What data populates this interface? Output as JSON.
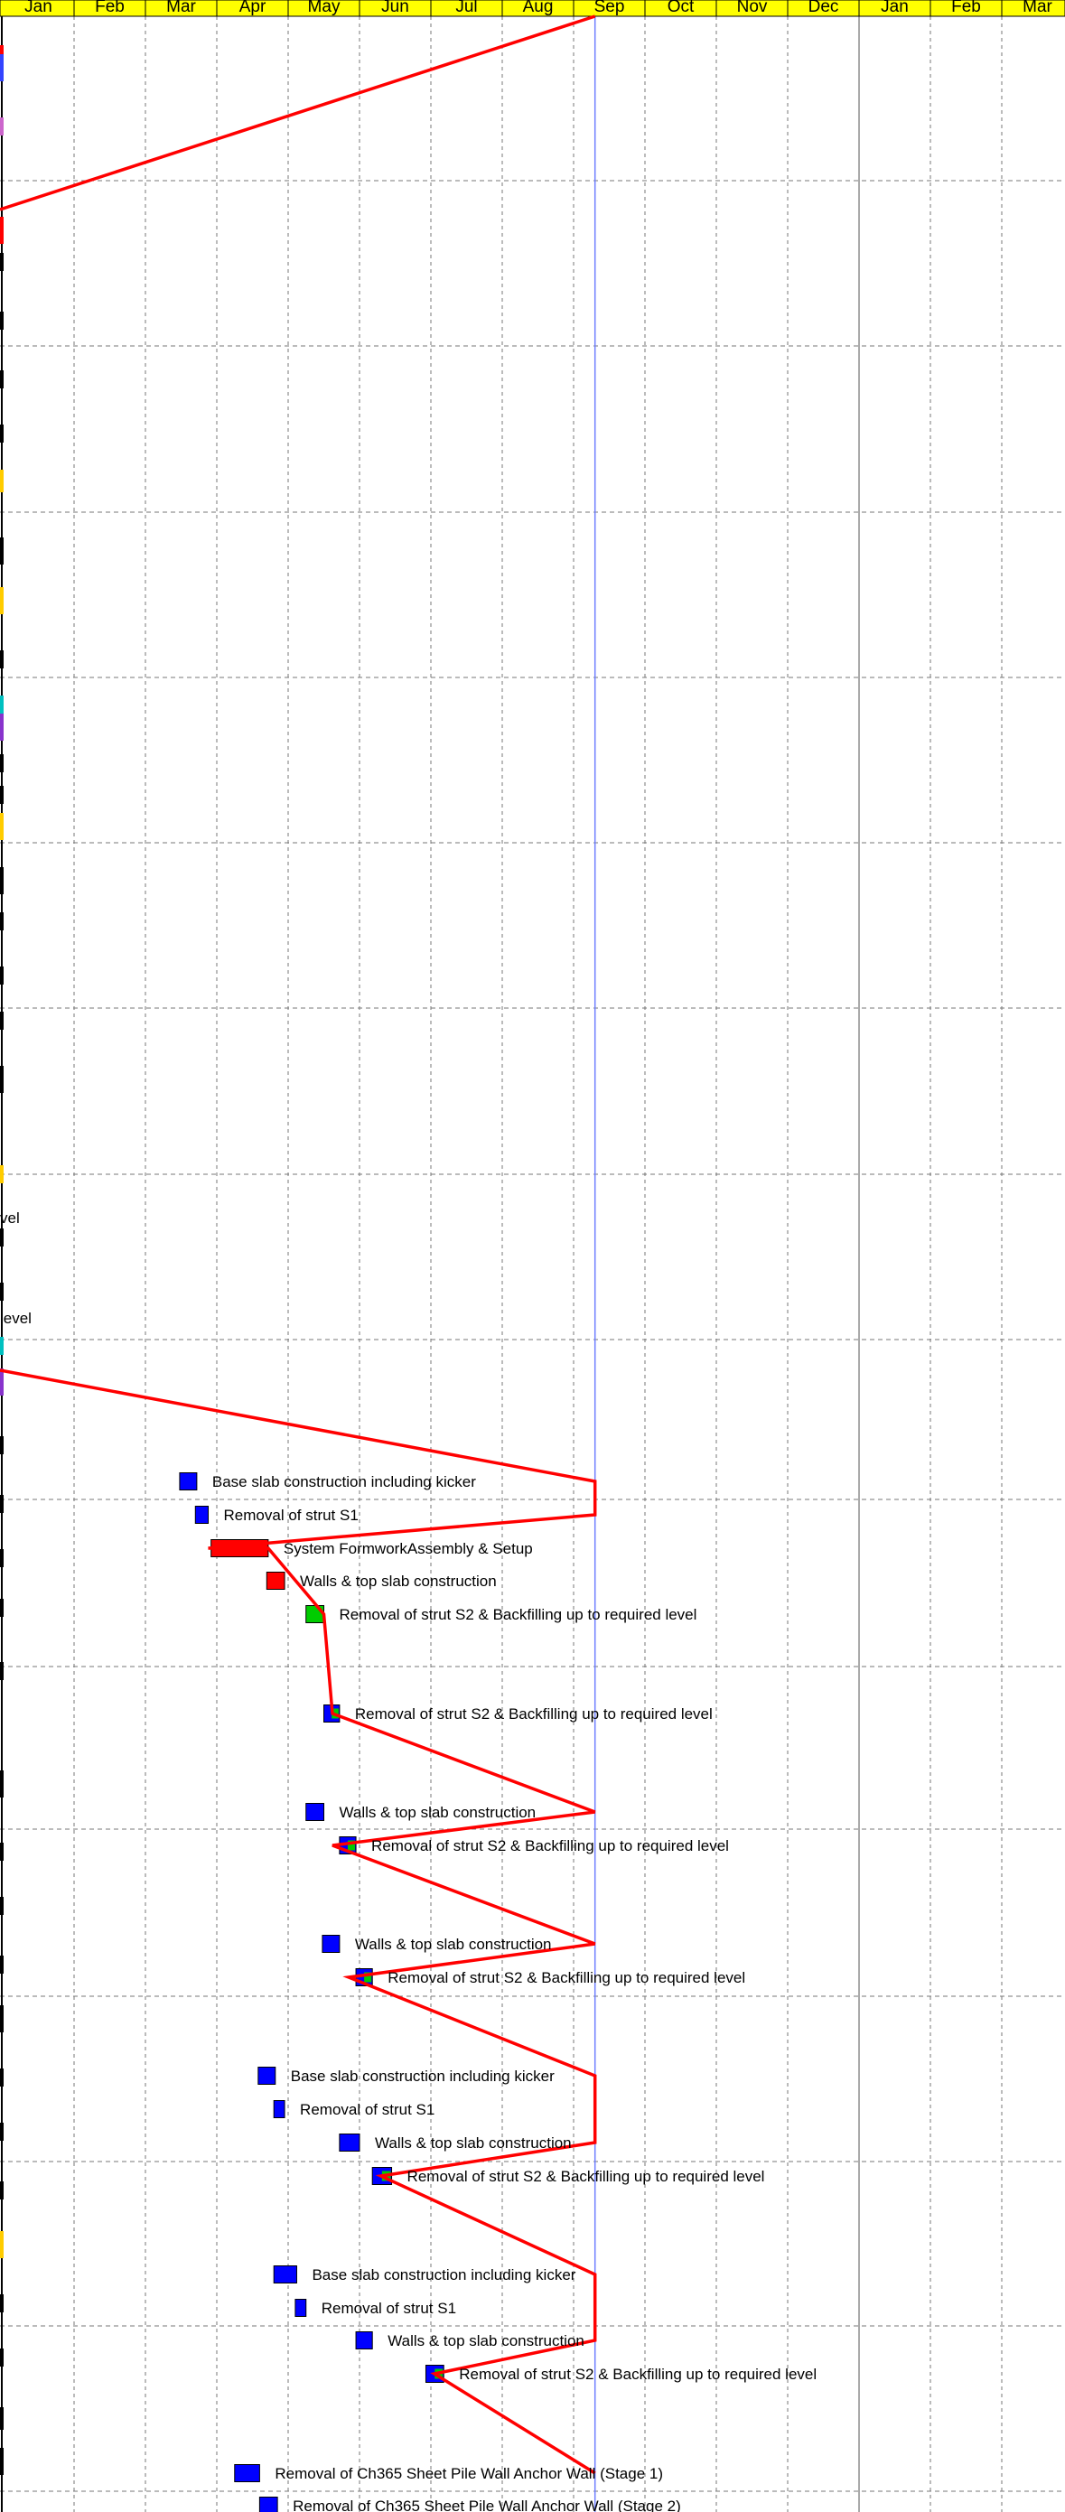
{
  "chart_data": {
    "type": "gantt",
    "timeline": {
      "months": [
        "Jan",
        "Feb",
        "Mar",
        "Apr",
        "May",
        "Jun",
        "Jul",
        "Aug",
        "Sep",
        "Oct",
        "Nov",
        "Dec",
        "Jan",
        "Feb",
        "Mar"
      ],
      "status_date_month": 8.3,
      "header_color": "#ffff00",
      "grid": "dashed"
    },
    "colors": {
      "planned": "#0000ff",
      "critical": "#ff0000",
      "complete": "#00cc00",
      "progress_line": "#ff0000",
      "status_line": "#6f7fff"
    },
    "edge_labels": [
      "vel",
      "level"
    ],
    "tasks": [
      {
        "label": "Base slab construction including kicker",
        "start": 2.48,
        "end": 2.72,
        "row": 1640,
        "color": "#0000ff"
      },
      {
        "label": "Removal of strut S1",
        "start": 2.7,
        "end": 2.88,
        "row": 1677,
        "color": "#0000ff"
      },
      {
        "label": "System FormworkAssembly & Setup",
        "start": 2.92,
        "end": 3.72,
        "row": 1714,
        "color": "#ff0000"
      },
      {
        "label": "Walls & top slab construction",
        "start": 3.7,
        "end": 3.95,
        "row": 1750,
        "color": "#ff0000"
      },
      {
        "label": "Removal of strut S2 & Backfilling up to required level",
        "start": 4.25,
        "end": 4.5,
        "row": 1787,
        "color": "#00cc00"
      },
      {
        "label": "Removal of strut S2 & Backfilling up to required level",
        "start": 4.5,
        "end": 4.72,
        "row": 1897,
        "color": "#0000ff",
        "progress": 0.5
      },
      {
        "label": "Walls & top slab construction",
        "start": 4.25,
        "end": 4.5,
        "row": 2006,
        "color": "#0000ff"
      },
      {
        "label": "Removal of strut S2 & Backfilling up to required level",
        "start": 4.72,
        "end": 4.95,
        "row": 2043,
        "color": "#0000ff",
        "progress": 0.5
      },
      {
        "label": "Walls & top slab construction",
        "start": 4.48,
        "end": 4.72,
        "row": 2152,
        "color": "#0000ff"
      },
      {
        "label": "Removal of strut S2 & Backfilling up to required level",
        "start": 4.95,
        "end": 5.18,
        "row": 2189,
        "color": "#0000ff",
        "progress": 0.5
      },
      {
        "label": "Base slab construction including kicker",
        "start": 3.58,
        "end": 3.82,
        "row": 2298,
        "color": "#0000ff"
      },
      {
        "label": "Removal of strut S1",
        "start": 3.8,
        "end": 3.95,
        "row": 2335,
        "color": "#0000ff"
      },
      {
        "label": "Walls & top slab construction",
        "start": 4.72,
        "end": 5.0,
        "row": 2372,
        "color": "#0000ff"
      },
      {
        "label": "Removal of strut S2 & Backfilling up to required level",
        "start": 5.18,
        "end": 5.45,
        "row": 2409,
        "color": "#0000ff",
        "progress": 0.5
      },
      {
        "label": "Base slab construction including kicker",
        "start": 3.8,
        "end": 4.12,
        "row": 2518,
        "color": "#0000ff"
      },
      {
        "label": "Removal of strut S1",
        "start": 4.1,
        "end": 4.25,
        "row": 2555,
        "color": "#0000ff"
      },
      {
        "label": "Walls & top slab construction",
        "start": 4.95,
        "end": 5.18,
        "row": 2591,
        "color": "#0000ff"
      },
      {
        "label": "Removal of strut S2 & Backfilling up to required level",
        "start": 5.93,
        "end": 6.18,
        "row": 2628,
        "color": "#0000ff",
        "progress": 0.5
      },
      {
        "label": "Removal of Ch365 Sheet Pile Wall Anchor Wall (Stage 1)",
        "start": 3.25,
        "end": 3.6,
        "row": 2738,
        "color": "#0000ff"
      },
      {
        "label": "Removal of Ch365 Sheet Pile Wall Anchor Wall (Stage 2)",
        "start": 3.6,
        "end": 3.85,
        "row": 2774,
        "color": "#0000ff"
      }
    ]
  }
}
